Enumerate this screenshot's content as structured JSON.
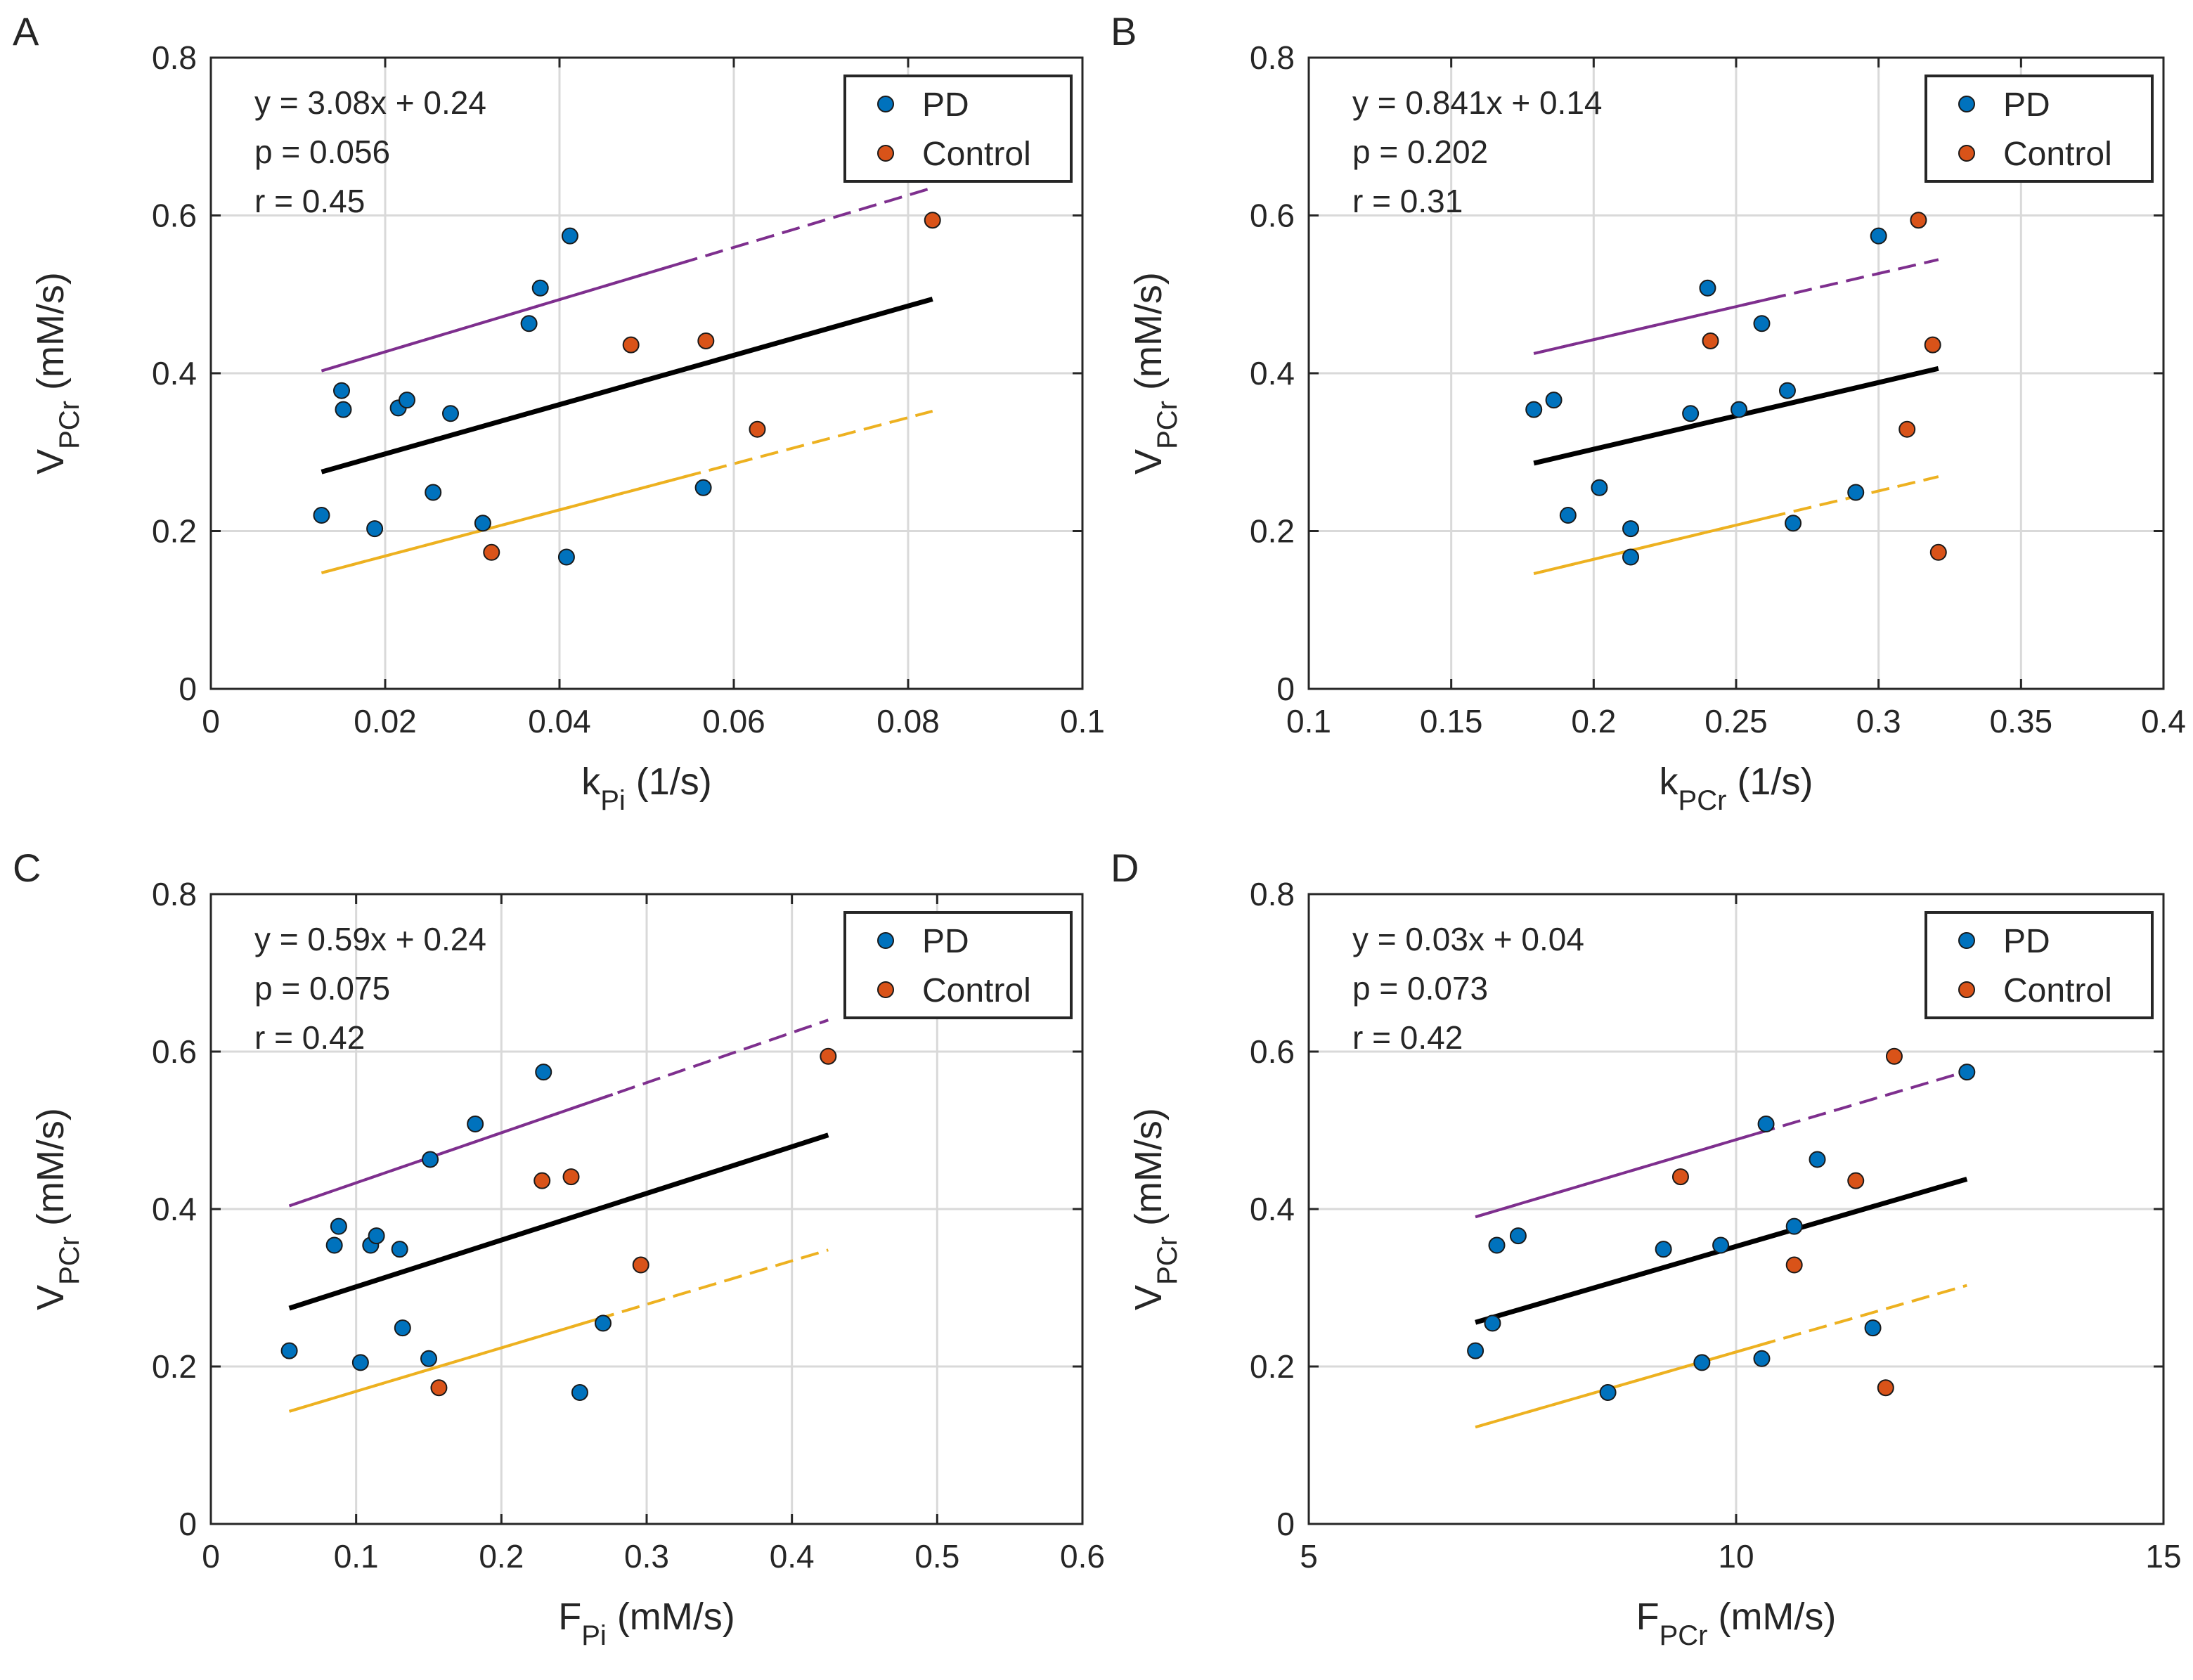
{
  "colors": {
    "pd": "#0072BD",
    "control": "#D95319",
    "fit": "#000000",
    "upper_band": "#7E2F8E",
    "lower_band": "#EDB120",
    "grid": "#d9d9d9",
    "axis": "#262626"
  },
  "chart_data": [
    {
      "panel": "A",
      "type": "scatter",
      "xlabel": "k",
      "xlabel_sub": "Pi",
      "xlabel_unit": " (1/s)",
      "ylabel": "V",
      "ylabel_sub": "PCr",
      "ylabel_unit": " (mM/s)",
      "xlim": [
        0,
        0.1
      ],
      "ylim": [
        0,
        0.8
      ],
      "xticks": [
        0,
        0.02,
        0.04,
        0.06,
        0.08,
        0.1
      ],
      "xtick_labels": [
        "0",
        "0.02",
        "0.04",
        "0.06",
        "0.08",
        "0.1"
      ],
      "yticks": [
        0,
        0.2,
        0.4,
        0.6,
        0.8
      ],
      "ytick_labels": [
        "0",
        "0.2",
        "0.4",
        "0.6",
        "0.8"
      ],
      "grid": true,
      "annotation": [
        "y = 3.08x + 0.24",
        "p = 0.056",
        "r = 0.45"
      ],
      "legend": [
        "PD",
        "Control"
      ],
      "legend_position": "top-right",
      "series": [
        {
          "name": "PD",
          "points": [
            [
              0.0127,
              0.22
            ],
            [
              0.015,
              0.378
            ],
            [
              0.0152,
              0.354
            ],
            [
              0.0188,
              0.203
            ],
            [
              0.0215,
              0.356
            ],
            [
              0.0225,
              0.366
            ],
            [
              0.0255,
              0.249
            ],
            [
              0.0275,
              0.349
            ],
            [
              0.0312,
              0.21
            ],
            [
              0.0365,
              0.463
            ],
            [
              0.0378,
              0.508
            ],
            [
              0.0408,
              0.167
            ],
            [
              0.0412,
              0.574
            ],
            [
              0.0565,
              0.255
            ]
          ]
        },
        {
          "name": "Control",
          "points": [
            [
              0.0322,
              0.173
            ],
            [
              0.0482,
              0.436
            ],
            [
              0.0568,
              0.441
            ],
            [
              0.0627,
              0.329
            ],
            [
              0.0828,
              0.594
            ]
          ]
        }
      ],
      "fit_line": {
        "x": [
          0.0127,
          0.0828
        ],
        "y": [
          0.275,
          0.494
        ]
      },
      "upper_band": {
        "x": [
          0.0127,
          0.0828
        ],
        "y": [
          0.403,
          0.635
        ]
      },
      "lower_band": {
        "x": [
          0.0127,
          0.0828
        ],
        "y": [
          0.147,
          0.352
        ]
      }
    },
    {
      "panel": "B",
      "type": "scatter",
      "xlabel": "k",
      "xlabel_sub": "PCr",
      "xlabel_unit": " (1/s)",
      "ylabel": "V",
      "ylabel_sub": "PCr",
      "ylabel_unit": " (mM/s)",
      "xlim": [
        0.1,
        0.4
      ],
      "ylim": [
        0,
        0.8
      ],
      "xticks": [
        0.1,
        0.15,
        0.2,
        0.25,
        0.3,
        0.35,
        0.4
      ],
      "xtick_labels": [
        "0.1",
        "0.15",
        "0.2",
        "0.25",
        "0.3",
        "0.35",
        "0.4"
      ],
      "yticks": [
        0,
        0.2,
        0.4,
        0.6,
        0.8
      ],
      "ytick_labels": [
        "0",
        "0.2",
        "0.4",
        "0.6",
        "0.8"
      ],
      "grid": true,
      "annotation": [
        "y = 0.841x + 0.14",
        "p = 0.202",
        "r = 0.31"
      ],
      "legend": [
        "PD",
        "Control"
      ],
      "legend_position": "top-right",
      "series": [
        {
          "name": "PD",
          "points": [
            [
              0.179,
              0.354
            ],
            [
              0.186,
              0.366
            ],
            [
              0.191,
              0.22
            ],
            [
              0.202,
              0.255
            ],
            [
              0.213,
              0.203
            ],
            [
              0.213,
              0.167
            ],
            [
              0.234,
              0.349
            ],
            [
              0.24,
              0.508
            ],
            [
              0.251,
              0.354
            ],
            [
              0.259,
              0.463
            ],
            [
              0.268,
              0.378
            ],
            [
              0.27,
              0.21
            ],
            [
              0.292,
              0.249
            ],
            [
              0.3,
              0.574
            ]
          ]
        },
        {
          "name": "Control",
          "points": [
            [
              0.241,
              0.441
            ],
            [
              0.31,
              0.329
            ],
            [
              0.314,
              0.594
            ],
            [
              0.319,
              0.436
            ],
            [
              0.321,
              0.173
            ]
          ]
        }
      ],
      "fit_line": {
        "x": [
          0.179,
          0.321
        ],
        "y": [
          0.286,
          0.406
        ]
      },
      "upper_band": {
        "x": [
          0.179,
          0.321
        ],
        "y": [
          0.425,
          0.544
        ]
      },
      "lower_band": {
        "x": [
          0.179,
          0.321
        ],
        "y": [
          0.146,
          0.269
        ]
      }
    },
    {
      "panel": "C",
      "type": "scatter",
      "xlabel": "F",
      "xlabel_sub": "Pi",
      "xlabel_unit": " (mM/s)",
      "ylabel": "V",
      "ylabel_sub": "PCr",
      "ylabel_unit": " (mM/s)",
      "xlim": [
        0,
        0.6
      ],
      "ylim": [
        0,
        0.8
      ],
      "xticks": [
        0,
        0.1,
        0.2,
        0.3,
        0.4,
        0.5,
        0.6
      ],
      "xtick_labels": [
        "0",
        "0.1",
        "0.2",
        "0.3",
        "0.4",
        "0.5",
        "0.6"
      ],
      "yticks": [
        0,
        0.2,
        0.4,
        0.6,
        0.8
      ],
      "ytick_labels": [
        "0",
        "0.2",
        "0.4",
        "0.6",
        "0.8"
      ],
      "grid": true,
      "annotation": [
        "y = 0.59x + 0.24",
        "p = 0.075",
        "r = 0.42"
      ],
      "legend": [
        "PD",
        "Control"
      ],
      "legend_position": "top-right",
      "series": [
        {
          "name": "PD",
          "points": [
            [
              0.054,
              0.22
            ],
            [
              0.085,
              0.354
            ],
            [
              0.088,
              0.378
            ],
            [
              0.103,
              0.205
            ],
            [
              0.11,
              0.354
            ],
            [
              0.114,
              0.366
            ],
            [
              0.13,
              0.349
            ],
            [
              0.132,
              0.249
            ],
            [
              0.15,
              0.21
            ],
            [
              0.151,
              0.463
            ],
            [
              0.182,
              0.508
            ],
            [
              0.229,
              0.574
            ],
            [
              0.254,
              0.167
            ],
            [
              0.27,
              0.255
            ]
          ]
        },
        {
          "name": "Control",
          "points": [
            [
              0.157,
              0.173
            ],
            [
              0.228,
              0.436
            ],
            [
              0.248,
              0.441
            ],
            [
              0.296,
              0.329
            ],
            [
              0.425,
              0.594
            ]
          ]
        }
      ],
      "fit_line": {
        "x": [
          0.054,
          0.425
        ],
        "y": [
          0.274,
          0.494
        ]
      },
      "upper_band": {
        "x": [
          0.054,
          0.425
        ],
        "y": [
          0.404,
          0.64
        ]
      },
      "lower_band": {
        "x": [
          0.054,
          0.425
        ],
        "y": [
          0.143,
          0.348
        ]
      }
    },
    {
      "panel": "D",
      "type": "scatter",
      "xlabel": "F",
      "xlabel_sub": "PCr",
      "xlabel_unit": " (mM/s)",
      "ylabel": "V",
      "ylabel_sub": "PCr",
      "ylabel_unit": " (mM/s)",
      "xlim": [
        5,
        15
      ],
      "ylim": [
        0,
        0.8
      ],
      "xticks": [
        5,
        10,
        15
      ],
      "xtick_labels": [
        "5",
        "10",
        "15"
      ],
      "yticks": [
        0,
        0.2,
        0.4,
        0.6,
        0.8
      ],
      "ytick_labels": [
        "0",
        "0.2",
        "0.4",
        "0.6",
        "0.8"
      ],
      "grid": true,
      "annotation": [
        "y = 0.03x + 0.04",
        "p = 0.073",
        "r = 0.42"
      ],
      "legend": [
        "PD",
        "Control"
      ],
      "legend_position": "top-right",
      "series": [
        {
          "name": "PD",
          "points": [
            [
              6.95,
              0.22
            ],
            [
              7.15,
              0.255
            ],
            [
              7.2,
              0.354
            ],
            [
              7.45,
              0.366
            ],
            [
              8.5,
              0.167
            ],
            [
              9.15,
              0.349
            ],
            [
              9.6,
              0.205
            ],
            [
              9.82,
              0.354
            ],
            [
              10.3,
              0.21
            ],
            [
              10.35,
              0.508
            ],
            [
              10.95,
              0.463
            ],
            [
              10.68,
              0.378
            ],
            [
              11.6,
              0.249
            ],
            [
              12.7,
              0.574
            ]
          ]
        },
        {
          "name": "Control",
          "points": [
            [
              9.35,
              0.441
            ],
            [
              10.68,
              0.329
            ],
            [
              11.4,
              0.436
            ],
            [
              11.75,
              0.173
            ],
            [
              11.85,
              0.594
            ]
          ]
        }
      ],
      "fit_line": {
        "x": [
          6.95,
          12.7
        ],
        "y": [
          0.256,
          0.438
        ]
      },
      "upper_band": {
        "x": [
          6.95,
          12.7
        ],
        "y": [
          0.39,
          0.575
        ]
      },
      "lower_band": {
        "x": [
          6.95,
          12.7
        ],
        "y": [
          0.123,
          0.303
        ]
      }
    }
  ]
}
